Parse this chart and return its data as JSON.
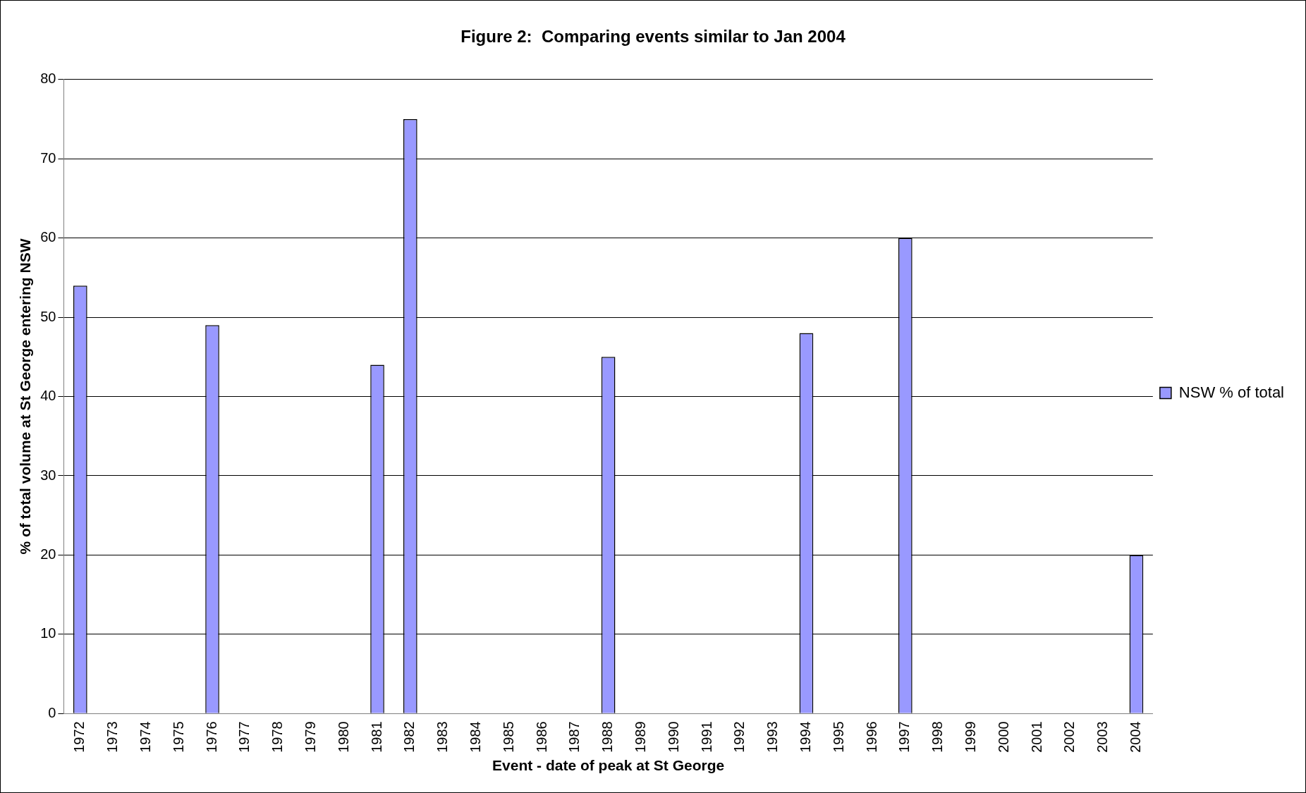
{
  "chart_data": {
    "type": "bar",
    "title": "Figure 2:  Comparing events similar to Jan 2004",
    "xlabel": "Event - date of peak at St George",
    "ylabel": "% of total volume at St George entering NSW",
    "categories": [
      "1972",
      "1973",
      "1974",
      "1975",
      "1976",
      "1977",
      "1978",
      "1979",
      "1980",
      "1981",
      "1982",
      "1983",
      "1984",
      "1985",
      "1986",
      "1987",
      "1988",
      "1989",
      "1990",
      "1991",
      "1992",
      "1993",
      "1994",
      "1995",
      "1996",
      "1997",
      "1998",
      "1999",
      "2000",
      "2001",
      "2002",
      "2003",
      "2004"
    ],
    "series": [
      {
        "name": "NSW % of total",
        "color": "#9999ff",
        "values": [
          54,
          null,
          null,
          null,
          49,
          null,
          null,
          null,
          null,
          44,
          75,
          null,
          null,
          null,
          null,
          null,
          45,
          null,
          null,
          null,
          null,
          null,
          48,
          null,
          null,
          60,
          null,
          null,
          null,
          null,
          null,
          null,
          20
        ]
      }
    ],
    "ylim": [
      0,
      80
    ],
    "yticks": [
      0,
      10,
      20,
      30,
      40,
      50,
      60,
      70,
      80
    ],
    "grid": "y",
    "legend": "right"
  }
}
